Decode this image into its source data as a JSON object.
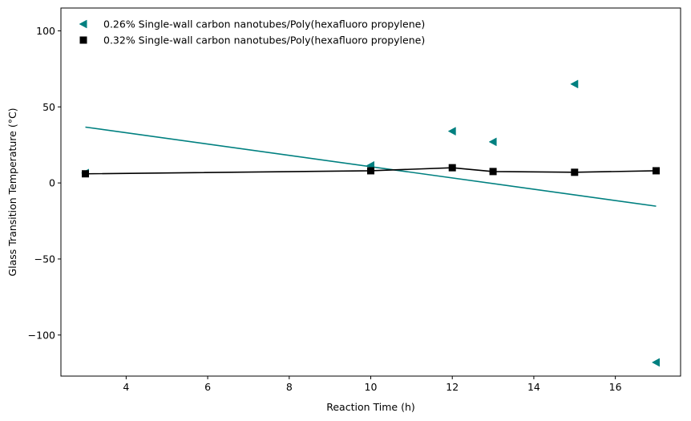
{
  "chart_data": {
    "type": "scatter",
    "xlabel": "Reaction Time (h)",
    "ylabel": "Glass Transition Temperature (°C)",
    "xlim": [
      2.4,
      17.6
    ],
    "ylim": [
      -127,
      115
    ],
    "x_ticks": [
      4,
      6,
      8,
      10,
      12,
      14,
      16
    ],
    "y_ticks": [
      -100,
      -50,
      0,
      50,
      100
    ],
    "x_tick_labels": [
      "4",
      "6",
      "8",
      "10",
      "12",
      "14",
      "16"
    ],
    "y_tick_labels": [
      "−100",
      "−50",
      "0",
      "50",
      "100"
    ],
    "grid": false,
    "legend_position": "top-left",
    "series": [
      {
        "name": "0.26% Single-wall carbon nanotubes/Poly(hexafluoro propylene)",
        "marker": "triangle-left",
        "color": "#008080",
        "x": [
          3,
          10,
          12,
          13,
          15,
          17
        ],
        "y": [
          6.5,
          11.5,
          34,
          27,
          65,
          -118
        ],
        "trendline": {
          "x": [
            3,
            17
          ],
          "y": [
            36.7,
            -15.3
          ]
        }
      },
      {
        "name": "0.32% Single-wall carbon nanotubes/Poly(hexafluoro propylene)",
        "marker": "square",
        "color": "#000000",
        "line": true,
        "x": [
          3,
          10,
          12,
          13,
          15,
          17
        ],
        "y": [
          6,
          8,
          10,
          7.5,
          7,
          8
        ]
      }
    ]
  }
}
